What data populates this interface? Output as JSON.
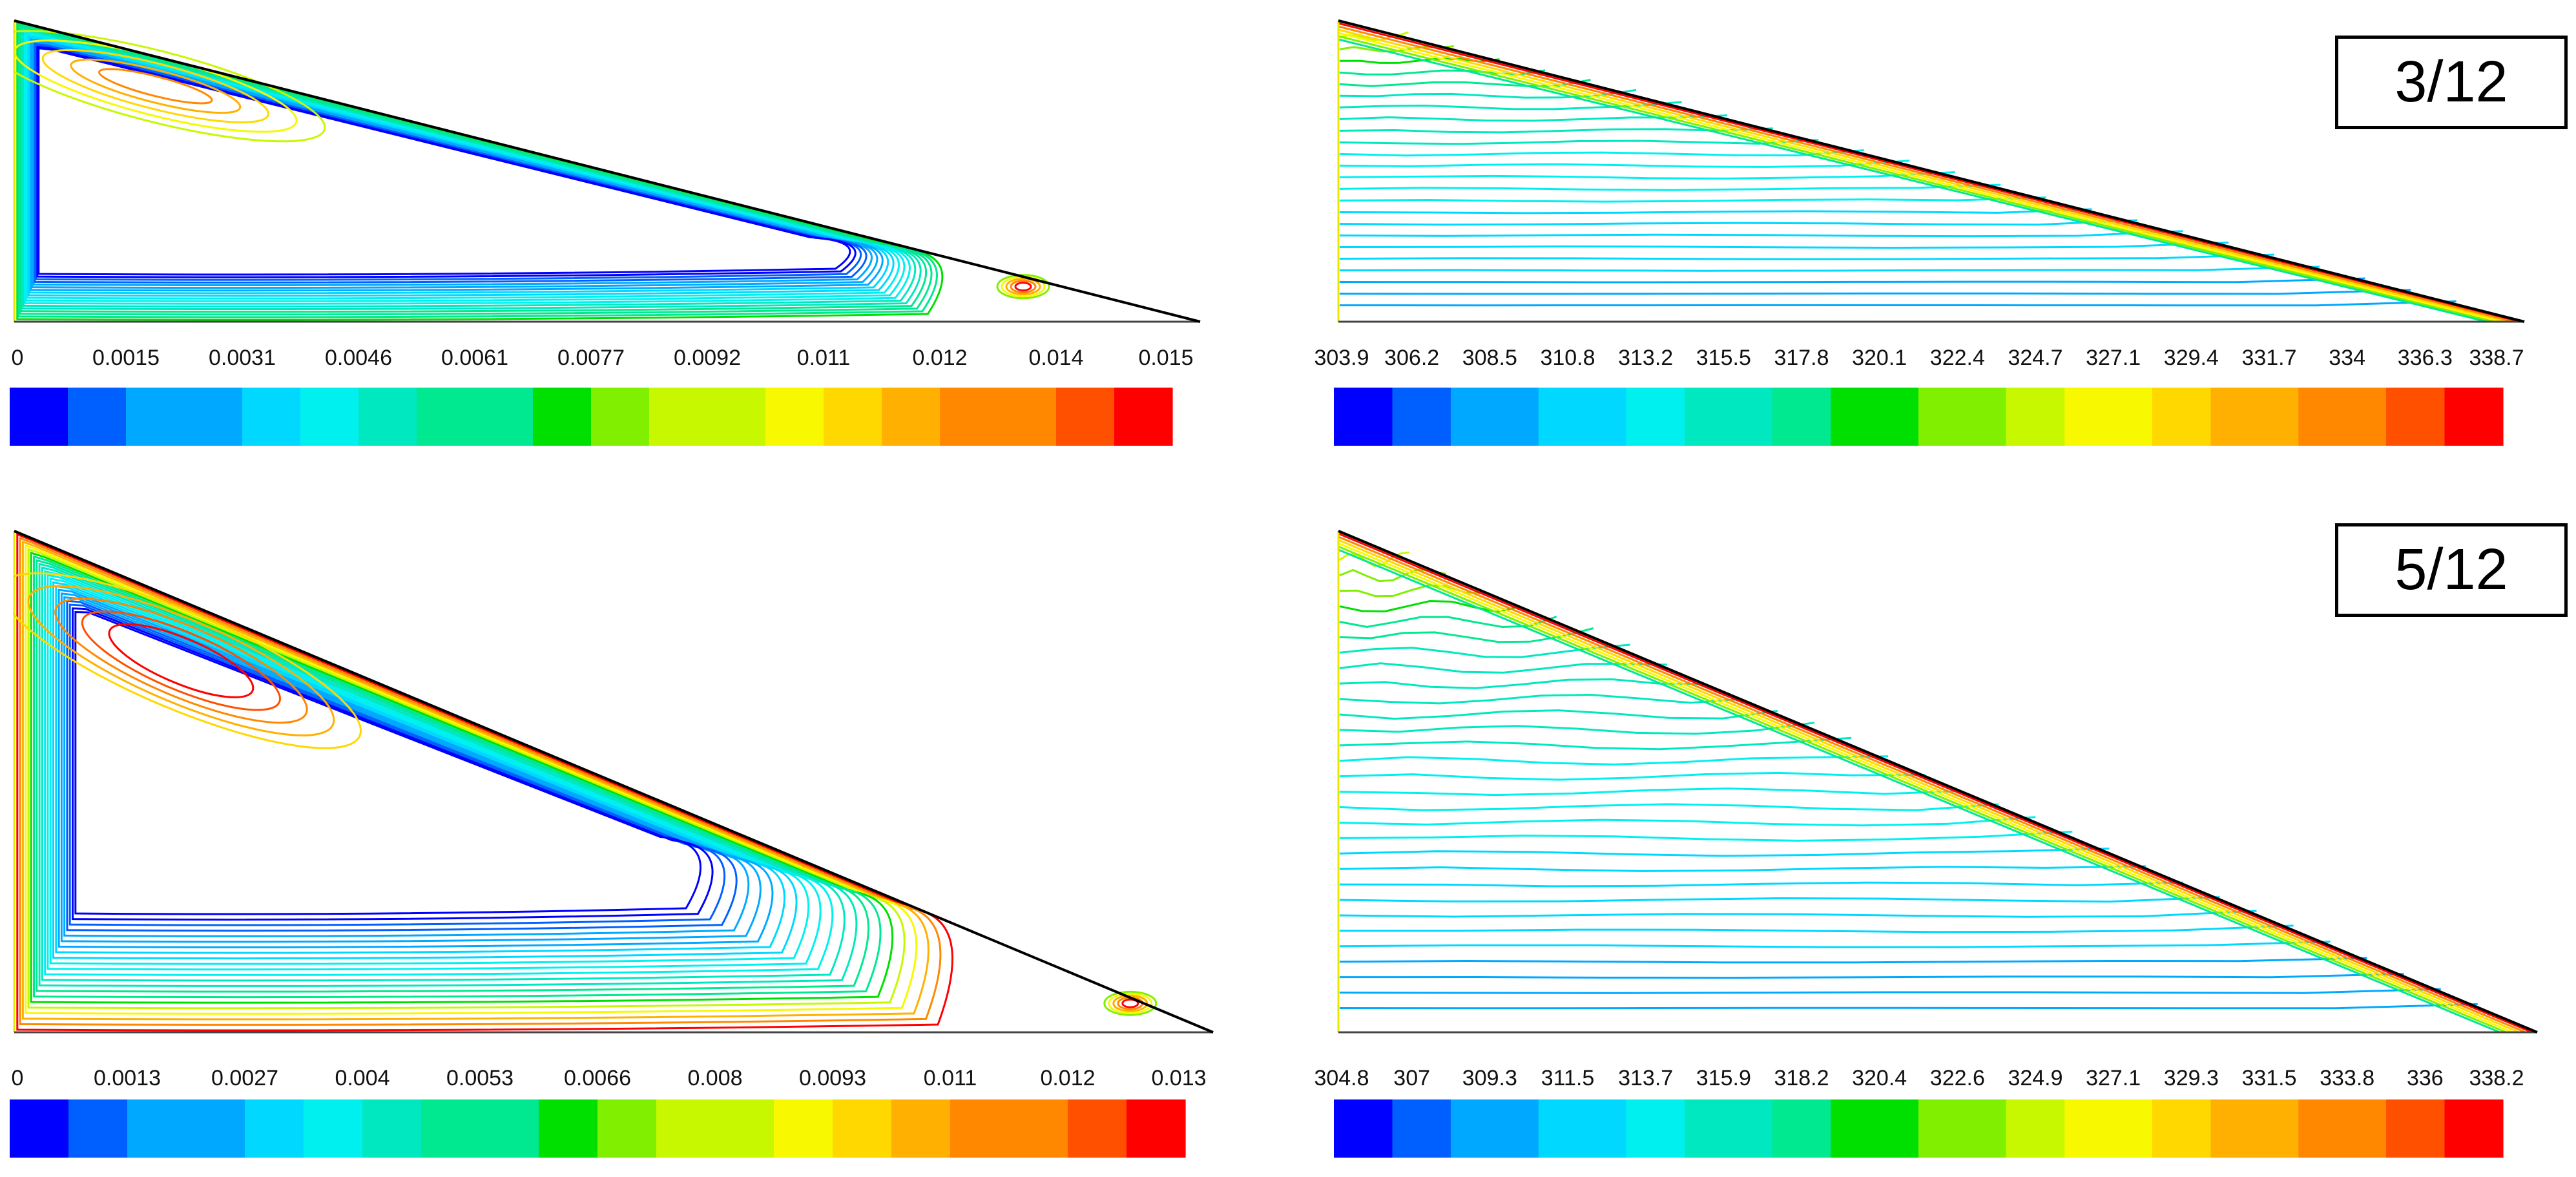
{
  "colors": {
    "stops": [
      "#0000ff",
      "#0060ff",
      "#00a8ff",
      "#00d8ff",
      "#00f0f0",
      "#00e8c0",
      "#00e890",
      "#00e000",
      "#80f000",
      "#c8f800",
      "#f8f800",
      "#ffd800",
      "#ffb000",
      "#ff8800",
      "#ff5000",
      "#ff0000"
    ],
    "outline": "#000000"
  },
  "panels": [
    {
      "id": "top-left",
      "field": "stream",
      "ticks": [
        "0",
        "0.0015",
        "0.0031",
        "0.0046",
        "0.0061",
        "0.0077",
        "0.0092",
        "0.011",
        "0.012",
        "0.014",
        "0.015"
      ],
      "segments": 20
    },
    {
      "id": "top-right",
      "field": "temperature",
      "ticks": [
        "303.9",
        "306.2",
        "308.5",
        "310.8",
        "313.2",
        "315.5",
        "317.8",
        "320.1",
        "322.4",
        "324.7",
        "327.1",
        "329.4",
        "331.7",
        "334",
        "336.3",
        "338.7"
      ],
      "segments": 40,
      "label": "3/12"
    },
    {
      "id": "bottom-left",
      "field": "stream",
      "ticks": [
        "0",
        "0.0013",
        "0.0027",
        "0.004",
        "0.0053",
        "0.0066",
        "0.008",
        "0.0093",
        "0.011",
        "0.012",
        "0.013"
      ],
      "segments": 20
    },
    {
      "id": "bottom-right",
      "field": "temperature",
      "ticks": [
        "304.8",
        "307",
        "309.3",
        "311.5",
        "313.7",
        "315.9",
        "318.2",
        "320.4",
        "322.6",
        "324.9",
        "327.1",
        "329.3",
        "331.5",
        "333.8",
        "336",
        "338.2"
      ],
      "segments": 40,
      "label": "5/12"
    }
  ]
}
